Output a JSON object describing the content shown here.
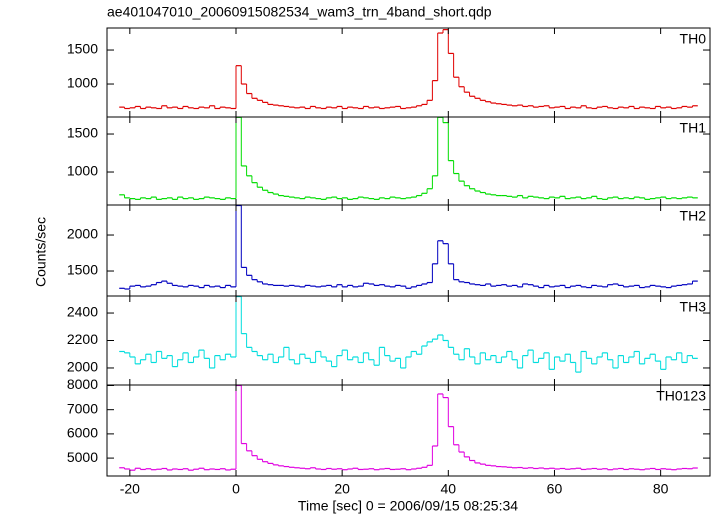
{
  "title": "ae401047010_20060915082534_wam3_trn_4band_short.qdp",
  "y_label": "Counts/sec",
  "x_label": "Time [sec] 0 = 2006/09/15 08:25:34",
  "chart_data": [
    {
      "type": "line",
      "xlim": [
        -24.3,
        89.3
      ],
      "xticks": [
        -20,
        0,
        20,
        40,
        60,
        80
      ],
      "ylim": [
        515,
        1824
      ],
      "yticks": [
        1000,
        1500
      ],
      "x": [
        -22,
        -21,
        -20,
        -19,
        -18,
        -17,
        -16,
        -15,
        -14,
        -13,
        -12,
        -11,
        -10,
        -9,
        -8,
        -7,
        -6,
        -5,
        -4,
        -3,
        -2,
        -1,
        0,
        1,
        2,
        3,
        4,
        5,
        6,
        7,
        8,
        9,
        10,
        11,
        12,
        13,
        14,
        15,
        16,
        17,
        18,
        19,
        20,
        21,
        22,
        23,
        24,
        25,
        26,
        27,
        28,
        29,
        30,
        31,
        32,
        33,
        34,
        35,
        36,
        37,
        38,
        39,
        40,
        41,
        42,
        43,
        44,
        45,
        46,
        47,
        48,
        49,
        50,
        51,
        52,
        53,
        54,
        55,
        56,
        57,
        58,
        59,
        60,
        61,
        62,
        63,
        64,
        65,
        66,
        67,
        68,
        69,
        70,
        71,
        72,
        73,
        74,
        75,
        76,
        77,
        78,
        79,
        80,
        81,
        82,
        83,
        84,
        85,
        86
      ],
      "series": [
        {
          "name": "TH0",
          "color": "#e00000",
          "values": [
            660,
            640,
            650,
            670,
            640,
            660,
            650,
            640,
            680,
            650,
            660,
            640,
            670,
            650,
            640,
            660,
            650,
            680,
            640,
            660,
            650,
            640,
            1270,
            1000,
            860,
            790,
            760,
            730,
            700,
            690,
            680,
            670,
            660,
            650,
            660,
            640,
            670,
            650,
            640,
            660,
            650,
            670,
            640,
            660,
            650,
            640,
            670,
            650,
            660,
            640,
            650,
            660,
            670,
            640,
            650,
            660,
            680,
            700,
            760,
            1050,
            1750,
            1800,
            1450,
            1100,
            960,
            880,
            820,
            790,
            760,
            740,
            720,
            710,
            700,
            690,
            680,
            690,
            670,
            680,
            660,
            670,
            680,
            650,
            660,
            670,
            640,
            660,
            650,
            680,
            650,
            640,
            660,
            670,
            650,
            640,
            660,
            650,
            670,
            640,
            660,
            650,
            640,
            670,
            650,
            660,
            640,
            650,
            670,
            660,
            680
          ]
        }
      ]
    },
    {
      "type": "line",
      "xlim": [
        -24.3,
        89.3
      ],
      "xticks": [
        -20,
        0,
        20,
        40,
        60,
        80
      ],
      "ylim": [
        566,
        1724
      ],
      "yticks": [
        1000,
        1500
      ],
      "x": [
        -22,
        -21,
        -20,
        -19,
        -18,
        -17,
        -16,
        -15,
        -14,
        -13,
        -12,
        -11,
        -10,
        -9,
        -8,
        -7,
        -6,
        -5,
        -4,
        -3,
        -2,
        -1,
        0,
        1,
        2,
        3,
        4,
        5,
        6,
        7,
        8,
        9,
        10,
        11,
        12,
        13,
        14,
        15,
        16,
        17,
        18,
        19,
        20,
        21,
        22,
        23,
        24,
        25,
        26,
        27,
        28,
        29,
        30,
        31,
        32,
        33,
        34,
        35,
        36,
        37,
        38,
        39,
        40,
        41,
        42,
        43,
        44,
        45,
        46,
        47,
        48,
        49,
        50,
        51,
        52,
        53,
        54,
        55,
        56,
        57,
        58,
        59,
        60,
        61,
        62,
        63,
        64,
        65,
        66,
        67,
        68,
        69,
        70,
        71,
        72,
        73,
        74,
        75,
        76,
        77,
        78,
        79,
        80,
        81,
        82,
        83,
        84,
        85,
        86
      ],
      "series": [
        {
          "name": "TH1",
          "color": "#00dd00",
          "values": [
            700,
            660,
            650,
            640,
            660,
            650,
            670,
            640,
            650,
            660,
            640,
            670,
            650,
            660,
            640,
            650,
            670,
            660,
            650,
            640,
            660,
            650,
            1720,
            1080,
            950,
            860,
            800,
            760,
            730,
            710,
            690,
            680,
            670,
            660,
            650,
            670,
            660,
            650,
            640,
            660,
            670,
            650,
            660,
            640,
            650,
            670,
            660,
            650,
            640,
            660,
            650,
            670,
            660,
            650,
            660,
            670,
            690,
            720,
            780,
            950,
            1720,
            1650,
            1150,
            980,
            880,
            820,
            780,
            750,
            730,
            710,
            700,
            690,
            690,
            680,
            670,
            690,
            660,
            680,
            670,
            660,
            650,
            670,
            660,
            680,
            650,
            660,
            670,
            650,
            660,
            680,
            650,
            640,
            660,
            670,
            650,
            660,
            650,
            670,
            660,
            640,
            650,
            660,
            670,
            650,
            660,
            650,
            660,
            670,
            660
          ]
        }
      ]
    },
    {
      "type": "line",
      "xlim": [
        -24.3,
        89.3
      ],
      "xticks": [
        -20,
        0,
        20,
        40,
        60,
        80
      ],
      "ylim": [
        1153,
        2417
      ],
      "yticks": [
        1500,
        2000
      ],
      "x": [
        -22,
        -21,
        -20,
        -19,
        -18,
        -17,
        -16,
        -15,
        -14,
        -13,
        -12,
        -11,
        -10,
        -9,
        -8,
        -7,
        -6,
        -5,
        -4,
        -3,
        -2,
        -1,
        0,
        1,
        2,
        3,
        4,
        5,
        6,
        7,
        8,
        9,
        10,
        11,
        12,
        13,
        14,
        15,
        16,
        17,
        18,
        19,
        20,
        21,
        22,
        23,
        24,
        25,
        26,
        27,
        28,
        29,
        30,
        31,
        32,
        33,
        34,
        35,
        36,
        37,
        38,
        39,
        40,
        41,
        42,
        43,
        44,
        45,
        46,
        47,
        48,
        49,
        50,
        51,
        52,
        53,
        54,
        55,
        56,
        57,
        58,
        59,
        60,
        61,
        62,
        63,
        64,
        65,
        66,
        67,
        68,
        69,
        70,
        71,
        72,
        73,
        74,
        75,
        76,
        77,
        78,
        79,
        80,
        81,
        82,
        83,
        84,
        85,
        86
      ],
      "series": [
        {
          "name": "TH2",
          "color": "#0000c0",
          "values": [
            1260,
            1250,
            1290,
            1300,
            1280,
            1290,
            1310,
            1340,
            1360,
            1330,
            1300,
            1290,
            1280,
            1300,
            1290,
            1270,
            1300,
            1280,
            1290,
            1270,
            1300,
            1280,
            2410,
            1550,
            1440,
            1380,
            1350,
            1320,
            1310,
            1300,
            1300,
            1290,
            1300,
            1290,
            1280,
            1300,
            1290,
            1280,
            1290,
            1300,
            1280,
            1310,
            1280,
            1300,
            1280,
            1290,
            1330,
            1320,
            1300,
            1310,
            1290,
            1280,
            1300,
            1290,
            1260,
            1280,
            1300,
            1320,
            1340,
            1600,
            1920,
            1880,
            1600,
            1380,
            1350,
            1340,
            1320,
            1310,
            1300,
            1320,
            1290,
            1300,
            1310,
            1290,
            1300,
            1280,
            1320,
            1310,
            1290,
            1270,
            1300,
            1280,
            1290,
            1300,
            1270,
            1290,
            1300,
            1280,
            1270,
            1300,
            1290,
            1280,
            1310,
            1320,
            1300,
            1280,
            1290,
            1300,
            1270,
            1280,
            1300,
            1290,
            1280,
            1270,
            1290,
            1300,
            1310,
            1320,
            1360
          ]
        }
      ]
    },
    {
      "type": "line",
      "xlim": [
        -24.3,
        89.3
      ],
      "xticks": [
        -20,
        0,
        20,
        40,
        60,
        80
      ],
      "ylim": [
        1876,
        2524
      ],
      "yticks": [
        2000,
        2200,
        2400
      ],
      "x": [
        -22,
        -21,
        -20,
        -19,
        -18,
        -17,
        -16,
        -15,
        -14,
        -13,
        -12,
        -11,
        -10,
        -9,
        -8,
        -7,
        -6,
        -5,
        -4,
        -3,
        -2,
        -1,
        0,
        1,
        2,
        3,
        4,
        5,
        6,
        7,
        8,
        9,
        10,
        11,
        12,
        13,
        14,
        15,
        16,
        17,
        18,
        19,
        20,
        21,
        22,
        23,
        24,
        25,
        26,
        27,
        28,
        29,
        30,
        31,
        32,
        33,
        34,
        35,
        36,
        37,
        38,
        39,
        40,
        41,
        42,
        43,
        44,
        45,
        46,
        47,
        48,
        49,
        50,
        51,
        52,
        53,
        54,
        55,
        56,
        57,
        58,
        59,
        60,
        61,
        62,
        63,
        64,
        65,
        66,
        67,
        68,
        69,
        70,
        71,
        72,
        73,
        74,
        75,
        76,
        77,
        78,
        79,
        80,
        81,
        82,
        83,
        84,
        85,
        86
      ],
      "series": [
        {
          "name": "TH3",
          "color": "#00dddd",
          "values": [
            2120,
            2110,
            2080,
            2030,
            2060,
            2100,
            2040,
            2120,
            2070,
            2090,
            2010,
            2060,
            2110,
            2040,
            2080,
            2130,
            2070,
            2000,
            2090,
            2060,
            2100,
            2080,
            2520,
            2250,
            2150,
            2120,
            2090,
            2060,
            2100,
            2040,
            2080,
            2150,
            2060,
            2030,
            2100,
            2070,
            2040,
            2120,
            2080,
            2050,
            2010,
            2090,
            2130,
            2060,
            2080,
            2040,
            2110,
            2060,
            2020,
            2150,
            2090,
            2050,
            2070,
            2000,
            2080,
            2120,
            2100,
            2160,
            2190,
            2210,
            2240,
            2200,
            2150,
            2100,
            2060,
            2140,
            2080,
            2030,
            2110,
            2060,
            2090,
            2040,
            2080,
            2120,
            2060,
            2000,
            2090,
            2130,
            2040,
            2070,
            2110,
            1990,
            2080,
            2050,
            2100,
            2040,
            1970,
            2120,
            2070,
            2030,
            2080,
            2110,
            2060,
            2000,
            2090,
            2040,
            2080,
            2120,
            2030,
            2070,
            2100,
            2050,
            1990,
            2080,
            2060,
            2110,
            2040,
            2090,
            2070
          ]
        }
      ]
    },
    {
      "type": "line",
      "xlim": [
        -24.3,
        89.3
      ],
      "xticks": [
        -20,
        0,
        20,
        40,
        60,
        80
      ],
      "ylim": [
        4260,
        8020
      ],
      "yticks": [
        5000,
        6000,
        7000,
        8000
      ],
      "x": [
        -22,
        -21,
        -20,
        -19,
        -18,
        -17,
        -16,
        -15,
        -14,
        -13,
        -12,
        -11,
        -10,
        -9,
        -8,
        -7,
        -6,
        -5,
        -4,
        -3,
        -2,
        -1,
        0,
        1,
        2,
        3,
        4,
        5,
        6,
        7,
        8,
        9,
        10,
        11,
        12,
        13,
        14,
        15,
        16,
        17,
        18,
        19,
        20,
        21,
        22,
        23,
        24,
        25,
        26,
        27,
        28,
        29,
        30,
        31,
        32,
        33,
        34,
        35,
        36,
        37,
        38,
        39,
        40,
        41,
        42,
        43,
        44,
        45,
        46,
        47,
        48,
        49,
        50,
        51,
        52,
        53,
        54,
        55,
        56,
        57,
        58,
        59,
        60,
        61,
        62,
        63,
        64,
        65,
        66,
        67,
        68,
        69,
        70,
        71,
        72,
        73,
        74,
        75,
        76,
        77,
        78,
        79,
        80,
        81,
        82,
        83,
        84,
        85,
        86
      ],
      "series": [
        {
          "name": "TH0123",
          "color": "#e000e0",
          "values": [
            4600,
            4550,
            4500,
            4580,
            4530,
            4560,
            4520,
            4540,
            4570,
            4510,
            4550,
            4530,
            4560,
            4500,
            4540,
            4580,
            4520,
            4550,
            4530,
            4560,
            4510,
            4540,
            8000,
            5600,
            5300,
            5100,
            4950,
            4850,
            4780,
            4720,
            4680,
            4650,
            4620,
            4600,
            4580,
            4560,
            4600,
            4550,
            4530,
            4570,
            4540,
            4560,
            4520,
            4550,
            4580,
            4530,
            4540,
            4560,
            4520,
            4550,
            4570,
            4530,
            4540,
            4560,
            4520,
            4550,
            4580,
            4620,
            4700,
            5500,
            7650,
            7500,
            6300,
            5550,
            5250,
            5050,
            4900,
            4800,
            4750,
            4700,
            4680,
            4650,
            4640,
            4620,
            4600,
            4610,
            4580,
            4600,
            4570,
            4590,
            4560,
            4580,
            4550,
            4570,
            4540,
            4560,
            4580,
            4530,
            4550,
            4570,
            4540,
            4560,
            4520,
            4550,
            4570,
            4530,
            4560,
            4540,
            4520,
            4550,
            4570,
            4530,
            4560,
            4540,
            4520,
            4550,
            4570,
            4560,
            4590
          ]
        }
      ]
    }
  ]
}
